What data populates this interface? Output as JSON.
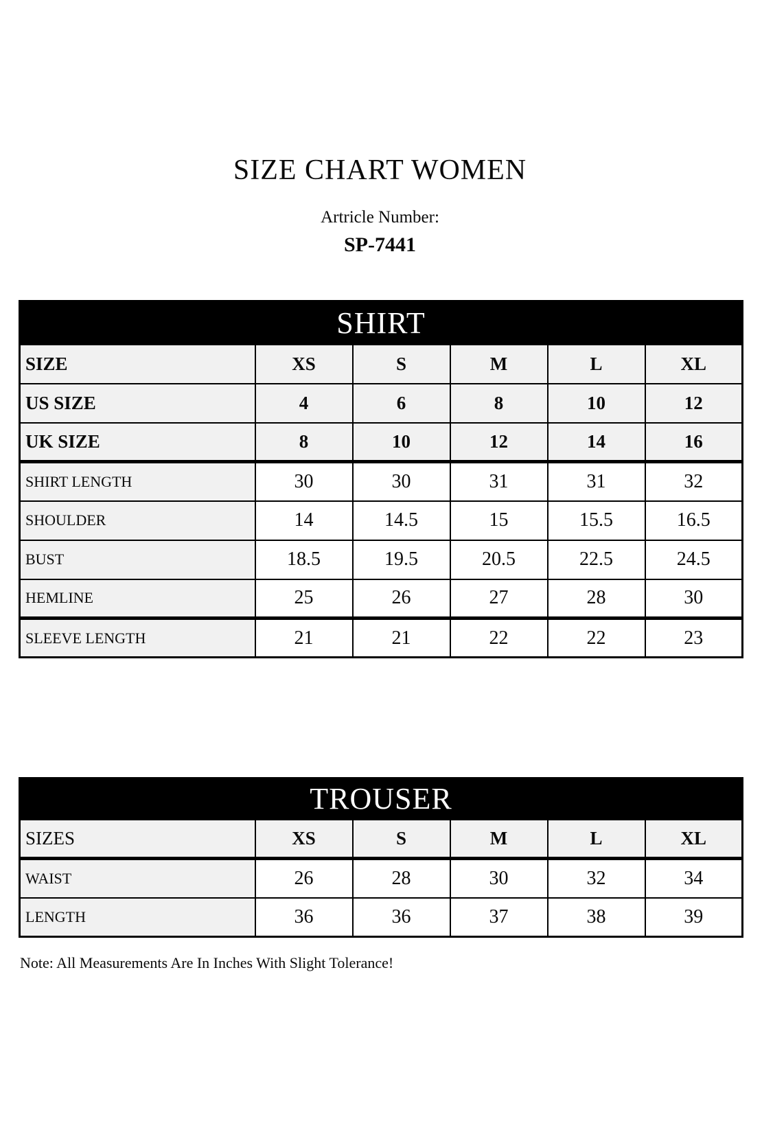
{
  "page": {
    "title": "SIZE CHART WOMEN",
    "article_label": "Artricle Number:",
    "article_number": "SP-7441",
    "note": "Note: All Measurements Are In Inches With Slight Tolerance!"
  },
  "colors": {
    "header_bg": "#000000",
    "header_text": "#ffffff",
    "shaded_row_bg": "#f1f1f1",
    "value_cell_bg": "#ffffff",
    "border": "#000000"
  },
  "shirt_table": {
    "title": "SHIRT",
    "size_labels": [
      "XS",
      "S",
      "M",
      "L",
      "XL"
    ],
    "rows": [
      {
        "label": "SIZE",
        "values": [
          "XS",
          "S",
          "M",
          "L",
          "XL"
        ],
        "type": "size",
        "label_bold": true
      },
      {
        "label": "US SIZE",
        "values": [
          "4",
          "6",
          "8",
          "10",
          "12"
        ],
        "type": "size",
        "label_bold": true
      },
      {
        "label": "UK SIZE",
        "values": [
          "8",
          "10",
          "12",
          "14",
          "16"
        ],
        "type": "size",
        "label_bold": true
      },
      {
        "label": "SHIRT LENGTH",
        "values": [
          "30",
          "30",
          "31",
          "31",
          "32"
        ],
        "type": "measure",
        "label_bold": false
      },
      {
        "label": "SHOULDER",
        "values": [
          "14",
          "14.5",
          "15",
          "15.5",
          "16.5"
        ],
        "type": "measure",
        "label_bold": false
      },
      {
        "label": "BUST",
        "values": [
          "18.5",
          "19.5",
          "20.5",
          "22.5",
          "24.5"
        ],
        "type": "measure",
        "label_bold": false
      },
      {
        "label": "HEMLINE",
        "values": [
          "25",
          "26",
          "27",
          "28",
          "30"
        ],
        "type": "measure",
        "label_bold": false
      },
      {
        "label": "SLEEVE LENGTH",
        "values": [
          "21",
          "21",
          "22",
          "22",
          "23"
        ],
        "type": "measure",
        "label_bold": false
      }
    ]
  },
  "trouser_table": {
    "title": "TROUSER",
    "size_labels": [
      "XS",
      "S",
      "M",
      "L",
      "XL"
    ],
    "rows": [
      {
        "label": "SIZES",
        "values": [
          "XS",
          "S",
          "M",
          "L",
          "XL"
        ],
        "type": "size",
        "label_bold": false
      },
      {
        "label": "WAIST",
        "values": [
          "26",
          "28",
          "30",
          "32",
          "34"
        ],
        "type": "measure",
        "label_bold": false
      },
      {
        "label": "LENGTH",
        "values": [
          "36",
          "36",
          "37",
          "38",
          "39"
        ],
        "type": "measure",
        "label_bold": false
      }
    ]
  }
}
